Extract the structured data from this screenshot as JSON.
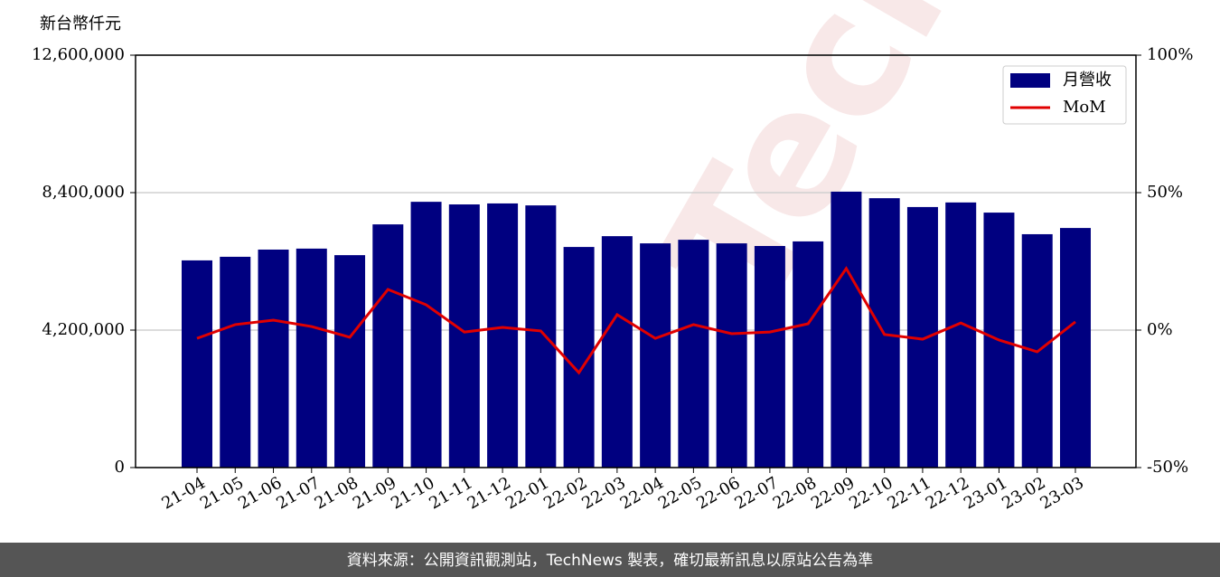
{
  "chart_data": {
    "type": "bar",
    "y_label": "新台幣仟元",
    "watermark": "TechNews",
    "footer": "資料來源：公開資訊觀測站，TechNews 製表，確切最新訊息以原站公告為準",
    "categories": [
      "21-04",
      "21-05",
      "21-06",
      "21-07",
      "21-08",
      "21-09",
      "21-10",
      "21-11",
      "21-12",
      "22-01",
      "22-02",
      "22-03",
      "22-04",
      "22-05",
      "22-06",
      "22-07",
      "22-08",
      "22-09",
      "22-10",
      "22-11",
      "22-12",
      "23-01",
      "23-02",
      "23-03"
    ],
    "series": [
      {
        "name": "月營收",
        "type": "bar",
        "color": "#000080",
        "axis": "y",
        "values": [
          6330000,
          6440000,
          6660000,
          6690000,
          6490000,
          7430000,
          8120000,
          8040000,
          8070000,
          8010000,
          6740000,
          7070000,
          6850000,
          6960000,
          6850000,
          6770000,
          6910000,
          8430000,
          8230000,
          7960000,
          8100000,
          7790000,
          7130000,
          7320000
        ]
      },
      {
        "name": "MoM",
        "type": "line",
        "color": "#e00000",
        "axis": "y2",
        "values": [
          -3.0,
          2.0,
          3.6,
          1.3,
          -2.6,
          14.8,
          9.2,
          -0.7,
          1.0,
          -0.3,
          -15.5,
          5.6,
          -3.0,
          2.0,
          -1.3,
          -0.7,
          2.3,
          22.4,
          -1.6,
          -3.3,
          2.6,
          -3.6,
          -7.9,
          3.0
        ]
      }
    ],
    "ylim": [
      0,
      12600000
    ],
    "yticks": [
      0,
      {
        "value": 4200000,
        "label": "4,200,000"
      },
      {
        "value": 8400000,
        "label": "8,400,000"
      },
      {
        "value": 12600000,
        "label": "12,600,000"
      }
    ],
    "y2lim": [
      -50,
      100
    ],
    "y2ticks": [
      {
        "value": -50,
        "label": "-50%"
      },
      {
        "value": 0,
        "label": "0%"
      },
      {
        "value": 50,
        "label": "50%"
      },
      {
        "value": 100,
        "label": "100%"
      }
    ],
    "grid": true,
    "legend": "upper right"
  }
}
